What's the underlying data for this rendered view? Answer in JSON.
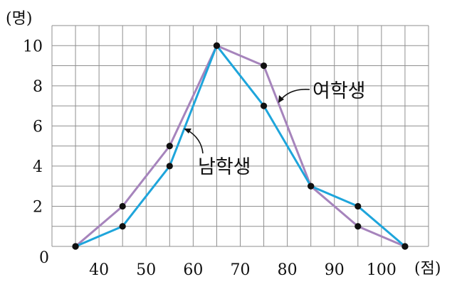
{
  "chart_data": {
    "type": "line",
    "y_unit": "(명)",
    "x_unit": "(점)",
    "origin_label": "0",
    "x": [
      35,
      45,
      55,
      65,
      75,
      85,
      95,
      105
    ],
    "xticks": [
      "40",
      "50",
      "60",
      "70",
      "80",
      "90",
      "100"
    ],
    "yticks": [
      "2",
      "4",
      "6",
      "8",
      "10"
    ],
    "xlim": [
      30,
      110
    ],
    "ylim": [
      0,
      11
    ],
    "grid": true,
    "series": [
      {
        "name": "여학생",
        "color": "#a684bc",
        "values": [
          0,
          2,
          5,
          10,
          9,
          3,
          1,
          0
        ]
      },
      {
        "name": "남학생",
        "color": "#1ea5db",
        "values": [
          0,
          1,
          4,
          10,
          7,
          3,
          2,
          0
        ]
      }
    ],
    "marker_color": "#111111"
  }
}
